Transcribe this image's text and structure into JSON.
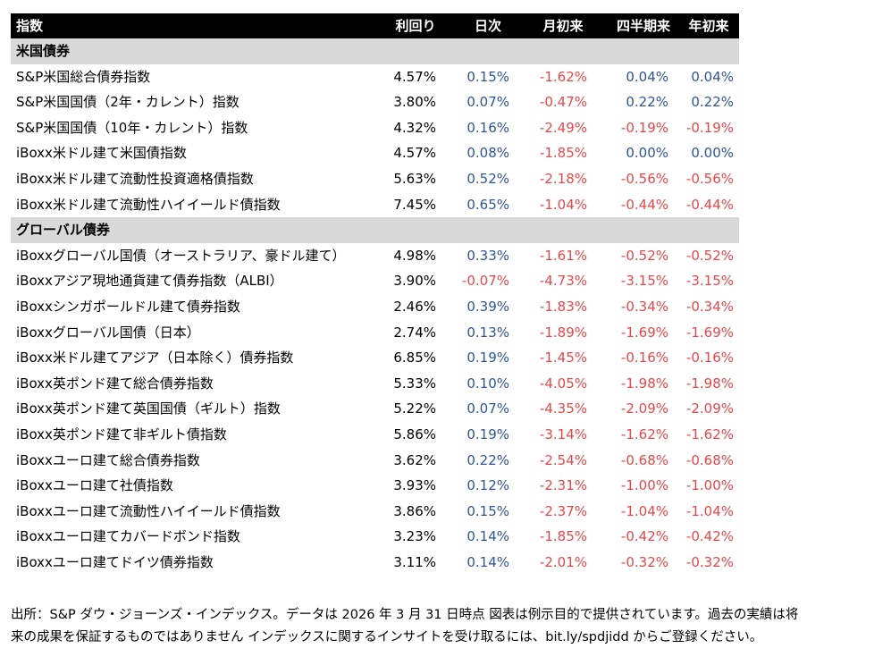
{
  "table": {
    "columns": [
      "指数",
      "利回り",
      "日次",
      "月初来",
      "四半期来",
      "年初来"
    ],
    "sections": [
      {
        "title": "米国債券",
        "rows": [
          [
            "S&P米国総合債券指数",
            "4.57%",
            "0.15%",
            "-1.62%",
            "0.04%",
            "0.04%"
          ],
          [
            "S&P米国国債（2年・カレント）指数",
            "3.80%",
            "0.07%",
            "-0.47%",
            "0.22%",
            "0.22%"
          ],
          [
            "S&P米国国債（10年・カレント）指数",
            "4.32%",
            "0.16%",
            "-2.49%",
            "-0.19%",
            "-0.19%"
          ],
          [
            "iBoxx米ドル建て米国債指数",
            "4.57%",
            "0.08%",
            "-1.85%",
            "0.00%",
            "0.00%"
          ],
          [
            "iBoxx米ドル建て流動性投資適格債指数",
            "5.63%",
            "0.52%",
            "-2.18%",
            "-0.56%",
            "-0.56%"
          ],
          [
            "iBoxx米ドル建て流動性ハイイールド債指数",
            "7.45%",
            "0.65%",
            "-1.04%",
            "-0.44%",
            "-0.44%"
          ]
        ]
      },
      {
        "title": "グローバル債券",
        "rows": [
          [
            "iBoxxグローバル国債（オーストラリア、豪ドル建て）",
            "4.98%",
            "0.33%",
            "-1.61%",
            "-0.52%",
            "-0.52%"
          ],
          [
            "iBoxxアジア現地通貨建て債券指数（ALBI）",
            "3.90%",
            "-0.07%",
            "-4.73%",
            "-3.15%",
            "-3.15%"
          ],
          [
            "iBoxxシンガポールドル建て債券指数",
            "2.46%",
            "0.39%",
            "-1.83%",
            "-0.34%",
            "-0.34%"
          ],
          [
            "iBoxxグローバル国債（日本）",
            "2.74%",
            "0.13%",
            "-1.89%",
            "-1.69%",
            "-1.69%"
          ],
          [
            "iBoxx米ドル建てアジア（日本除く）債券指数",
            "6.85%",
            "0.19%",
            "-1.45%",
            "-0.16%",
            "-0.16%"
          ],
          [
            "iBoxx英ポンド建て総合債券指数",
            "5.33%",
            "0.10%",
            "-4.05%",
            "-1.98%",
            "-1.98%"
          ],
          [
            "iBoxx英ポンド建て英国国債（ギルト）指数",
            "5.22%",
            "0.07%",
            "-4.35%",
            "-2.09%",
            "-2.09%"
          ],
          [
            "iBoxx英ポンド建て非ギルト債指数",
            "5.86%",
            "0.19%",
            "-3.14%",
            "-1.62%",
            "-1.62%"
          ],
          [
            "iBoxxユーロ建て総合債券指数",
            "3.62%",
            "0.22%",
            "-2.54%",
            "-0.68%",
            "-0.68%"
          ],
          [
            "iBoxxユーロ建て社債指数",
            "3.93%",
            "0.12%",
            "-2.31%",
            "-1.00%",
            "-1.00%"
          ],
          [
            "iBoxxユーロ建て流動性ハイイールド債指数",
            "3.86%",
            "0.15%",
            "-2.37%",
            "-1.04%",
            "-1.04%"
          ],
          [
            "iBoxxユーロ建てカバードボンド指数",
            "3.23%",
            "0.14%",
            "-1.85%",
            "-0.42%",
            "-0.42%"
          ],
          [
            "iBoxxユーロ建てドイツ債券指数",
            "3.11%",
            "0.14%",
            "-2.01%",
            "-0.32%",
            "-0.32%"
          ]
        ]
      }
    ]
  },
  "footer": {
    "lines": [
      "出所：S&P ダウ・ジョーンズ・インデックス。データは 2026 年 3 月 31 日時点 図表は例示目的で提供されています。過去の実績は将",
      "来の成果を保証するものではありません インデックスに関するインサイトを受け取るには、bit.ly/spdjidd からご登録ください。"
    ]
  }
}
